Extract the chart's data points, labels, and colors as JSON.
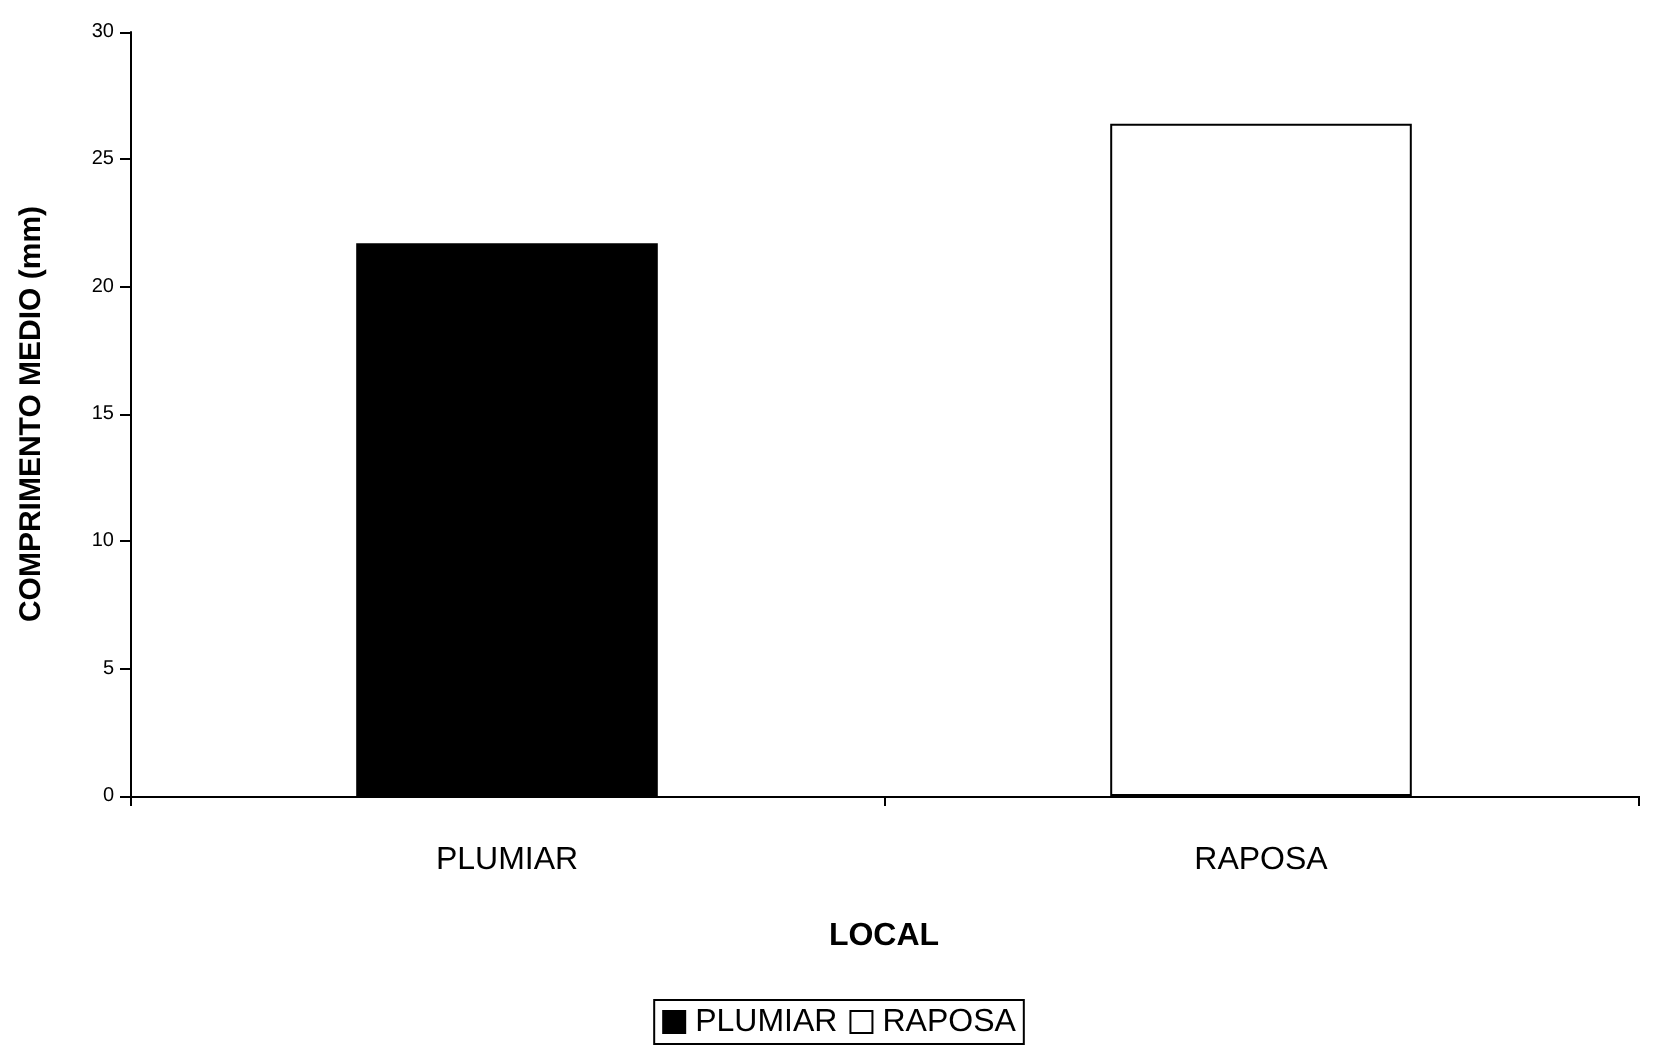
{
  "chart_data": {
    "type": "bar",
    "xlabel": "LOCAL",
    "ylabel": "COMPRIMENTO MEDIO (mm)",
    "categories": [
      "PLUMIAR",
      "RAPOSA"
    ],
    "series": [
      {
        "name": "PLUMIAR",
        "color": "#000000",
        "values": [
          21.7,
          null
        ]
      },
      {
        "name": "RAPOSA",
        "color": "#ffffff",
        "values": [
          null,
          26.4
        ]
      }
    ],
    "ylim": [
      0,
      30
    ],
    "yticks": [
      0,
      5,
      10,
      15,
      20,
      25,
      30
    ],
    "grid": false,
    "legend": "bottom"
  }
}
